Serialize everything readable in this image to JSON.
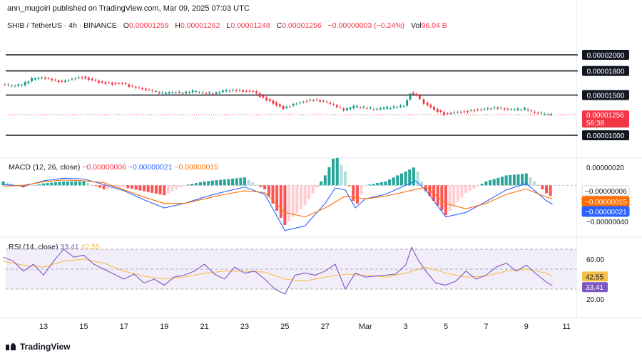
{
  "header": {
    "text": "ann_mugoiri published on TradingView.com, Mar 09, 2025 07:03 UTC"
  },
  "symbol": {
    "name": "SHIB / TetherUS · 4h · BINANCE",
    "o_label": "O",
    "o_value": "0.00001259",
    "h_label": "H",
    "h_value": "0.00001262",
    "l_label": "L",
    "l_value": "0.00001248",
    "c_label": "C",
    "c_value": "0.00001256",
    "change": "−0.00000003 (−0.24%)",
    "vol_label": "Vol",
    "vol_value": "96.04 B"
  },
  "macd_legend": {
    "name": "MACD (12, 26, close)",
    "v1": "−0.00000006",
    "v2": "−0.00000021",
    "v3": "−0.00000015"
  },
  "rsi_legend": {
    "name": "RSI (14, close)",
    "v1": "33.41",
    "v2": "42.55"
  },
  "footer": {
    "brand": "TradingView"
  },
  "colors": {
    "up": "#089981",
    "down": "#f23645",
    "macd_line": "#2962ff",
    "signal_line": "#ff6d00",
    "rsi_line": "#7e57c2",
    "rsi_ma": "#f5c04a",
    "rsi_band": "#ede7f6",
    "hist_up_strong": "#26a69a",
    "hist_up_weak": "#b2dfdb",
    "hist_down_strong": "#ff5252",
    "hist_down_weak": "#ffcdd2"
  },
  "chart_data": {
    "type": "line",
    "x_ticks": [
      "13",
      "15",
      "17",
      "19",
      "21",
      "23",
      "25",
      "27",
      "Mar",
      "3",
      "5",
      "7",
      "9",
      "11"
    ],
    "price_pane": {
      "horizontal_levels": [
        "0.00002000",
        "0.00001800",
        "0.00001500",
        "0.00001000"
      ],
      "level_values": [
        2e-05,
        1.8e-05,
        1.5e-05,
        1e-05
      ],
      "current_price": "0.00001256",
      "countdown": "56:38",
      "close_series": [
        [
          11.0,
          1.64e-05
        ],
        [
          11.5,
          1.62e-05
        ],
        [
          12.0,
          1.63e-05
        ],
        [
          12.5,
          1.7e-05
        ],
        [
          13.0,
          1.72e-05
        ],
        [
          13.5,
          1.69e-05
        ],
        [
          14.0,
          1.66e-05
        ],
        [
          14.5,
          1.7e-05
        ],
        [
          15.0,
          1.72e-05
        ],
        [
          15.5,
          1.68e-05
        ],
        [
          16.0,
          1.65e-05
        ],
        [
          16.5,
          1.64e-05
        ],
        [
          17.0,
          1.64e-05
        ],
        [
          17.5,
          1.6e-05
        ],
        [
          18.0,
          1.58e-05
        ],
        [
          18.5,
          1.55e-05
        ],
        [
          19.0,
          1.52e-05
        ],
        [
          19.5,
          1.54e-05
        ],
        [
          20.0,
          1.53e-05
        ],
        [
          20.5,
          1.55e-05
        ],
        [
          21.0,
          1.53e-05
        ],
        [
          21.5,
          1.52e-05
        ],
        [
          22.0,
          1.55e-05
        ],
        [
          22.5,
          1.56e-05
        ],
        [
          23.0,
          1.55e-05
        ],
        [
          23.5,
          1.54e-05
        ],
        [
          24.0,
          1.46e-05
        ],
        [
          24.5,
          1.4e-05
        ],
        [
          25.0,
          1.33e-05
        ],
        [
          25.5,
          1.38e-05
        ],
        [
          26.0,
          1.42e-05
        ],
        [
          26.5,
          1.44e-05
        ],
        [
          27.0,
          1.42e-05
        ],
        [
          27.5,
          1.38e-05
        ],
        [
          28.0,
          1.32e-05
        ],
        [
          28.5,
          1.36e-05
        ],
        [
          29.0,
          1.35e-05
        ],
        [
          29.5,
          1.33e-05
        ],
        [
          30.0,
          1.34e-05
        ],
        [
          30.5,
          1.35e-05
        ],
        [
          31.0,
          1.37e-05
        ],
        [
          31.3,
          1.52e-05
        ],
        [
          31.6,
          1.49e-05
        ],
        [
          32.0,
          1.4e-05
        ],
        [
          32.5,
          1.32e-05
        ],
        [
          33.0,
          1.26e-05
        ],
        [
          33.5,
          1.28e-05
        ],
        [
          34.0,
          1.29e-05
        ],
        [
          34.5,
          1.31e-05
        ],
        [
          35.0,
          1.32e-05
        ],
        [
          35.5,
          1.34e-05
        ],
        [
          36.0,
          1.33e-05
        ],
        [
          36.5,
          1.32e-05
        ],
        [
          37.0,
          1.33e-05
        ],
        [
          37.5,
          1.29e-05
        ],
        [
          38.0,
          1.27e-05
        ],
        [
          38.3,
          1.256e-05
        ]
      ]
    },
    "macd_pane": {
      "axis_labels": [
        "0.00000020",
        "−0.00000040"
      ],
      "axis_values": [
        2e-07,
        -4e-07
      ],
      "macd_value": "−0.00000006",
      "signal_value": "−0.00000015",
      "macd_line_value": "−0.00000021",
      "macd_series": [
        [
          11,
          1e-08
        ],
        [
          12,
          -1e-08
        ],
        [
          13,
          5e-08
        ],
        [
          14,
          8e-08
        ],
        [
          15,
          7e-08
        ],
        [
          16,
          1e-08
        ],
        [
          17,
          -6e-08
        ],
        [
          18,
          -1.6e-07
        ],
        [
          19,
          -2.5e-07
        ],
        [
          20,
          -2e-07
        ],
        [
          21,
          -1.3e-07
        ],
        [
          22,
          -7e-08
        ],
        [
          23,
          -2e-08
        ],
        [
          24,
          -1e-07
        ],
        [
          25,
          -5e-07
        ],
        [
          26,
          -4.5e-07
        ],
        [
          27,
          -2e-07
        ],
        [
          27.5,
          -3e-08
        ],
        [
          28,
          -5e-08
        ],
        [
          28.5,
          -2.5e-07
        ],
        [
          29,
          -1.5e-07
        ],
        [
          30,
          -1e-07
        ],
        [
          31,
          0.0
        ],
        [
          31.5,
          5e-08
        ],
        [
          32,
          -5e-08
        ],
        [
          33,
          -3.5e-07
        ],
        [
          34,
          -3e-07
        ],
        [
          35,
          -1.8e-07
        ],
        [
          36,
          -5e-08
        ],
        [
          37,
          2e-08
        ],
        [
          38,
          -1.7e-07
        ],
        [
          38.3,
          -2.1e-07
        ]
      ],
      "signal_series": [
        [
          11,
          -1e-08
        ],
        [
          12,
          0.0
        ],
        [
          13,
          4e-08
        ],
        [
          14,
          6e-08
        ],
        [
          15,
          5e-08
        ],
        [
          16,
          3e-08
        ],
        [
          17,
          -5e-08
        ],
        [
          18,
          -1.3e-07
        ],
        [
          19,
          -2e-07
        ],
        [
          20,
          -2e-07
        ],
        [
          21,
          -1.5e-07
        ],
        [
          22,
          -1e-07
        ],
        [
          23,
          -6e-08
        ],
        [
          24,
          -8e-08
        ],
        [
          25,
          -3e-07
        ],
        [
          26,
          -3.5e-07
        ],
        [
          27,
          -2.5e-07
        ],
        [
          28,
          -1.2e-07
        ],
        [
          29,
          -1.5e-07
        ],
        [
          30,
          -1.2e-07
        ],
        [
          31,
          -7e-08
        ],
        [
          32,
          -2e-08
        ],
        [
          33,
          -2e-07
        ],
        [
          34,
          -2.6e-07
        ],
        [
          35,
          -2e-07
        ],
        [
          36,
          -1e-07
        ],
        [
          37,
          -4e-08
        ],
        [
          38,
          -1.3e-07
        ],
        [
          38.3,
          -1.5e-07
        ]
      ]
    },
    "rsi_pane": {
      "axis_labels": [
        "60.00",
        "20.00"
      ],
      "axis_values": [
        60,
        20
      ],
      "rsi_value": "33.41",
      "rsi_ma_value": "42.55",
      "band_upper": 70,
      "band_lower": 30,
      "band_mid": 50,
      "rsi_series": [
        [
          11,
          62
        ],
        [
          11.5,
          58
        ],
        [
          12,
          48
        ],
        [
          12.5,
          55
        ],
        [
          13,
          44
        ],
        [
          13.5,
          58
        ],
        [
          14,
          70
        ],
        [
          14.5,
          62
        ],
        [
          15,
          64
        ],
        [
          15.5,
          55
        ],
        [
          16,
          50
        ],
        [
          16.5,
          45
        ],
        [
          17,
          40
        ],
        [
          17.5,
          45
        ],
        [
          18,
          36
        ],
        [
          18.5,
          40
        ],
        [
          19,
          34
        ],
        [
          19.5,
          42
        ],
        [
          20,
          44
        ],
        [
          20.5,
          48
        ],
        [
          21,
          55
        ],
        [
          21.5,
          45
        ],
        [
          22,
          40
        ],
        [
          22.5,
          52
        ],
        [
          23,
          46
        ],
        [
          23.5,
          48
        ],
        [
          24,
          40
        ],
        [
          24.5,
          30
        ],
        [
          25,
          25
        ],
        [
          25.5,
          44
        ],
        [
          26,
          46
        ],
        [
          26.5,
          44
        ],
        [
          27,
          48
        ],
        [
          27.5,
          55
        ],
        [
          28,
          30
        ],
        [
          28.5,
          46
        ],
        [
          29,
          42
        ],
        [
          29.5,
          43
        ],
        [
          30,
          44
        ],
        [
          30.5,
          45
        ],
        [
          31,
          54
        ],
        [
          31.3,
          72
        ],
        [
          31.6,
          60
        ],
        [
          32,
          48
        ],
        [
          32.5,
          36
        ],
        [
          33,
          34
        ],
        [
          33.5,
          38
        ],
        [
          34,
          48
        ],
        [
          34.5,
          40
        ],
        [
          35,
          44
        ],
        [
          35.5,
          52
        ],
        [
          36,
          56
        ],
        [
          36.5,
          48
        ],
        [
          37,
          54
        ],
        [
          37.5,
          45
        ],
        [
          38,
          37
        ],
        [
          38.3,
          33.41
        ]
      ],
      "rsi_ma_series": [
        [
          11,
          58
        ],
        [
          12,
          54
        ],
        [
          13,
          52
        ],
        [
          14,
          58
        ],
        [
          15,
          60
        ],
        [
          16,
          56
        ],
        [
          17,
          48
        ],
        [
          18,
          43
        ],
        [
          19,
          40
        ],
        [
          20,
          42
        ],
        [
          21,
          46
        ],
        [
          22,
          48
        ],
        [
          23,
          48
        ],
        [
          24,
          47
        ],
        [
          25,
          40
        ],
        [
          26,
          38
        ],
        [
          27,
          42
        ],
        [
          28,
          45
        ],
        [
          29,
          44
        ],
        [
          30,
          42
        ],
        [
          31,
          46
        ],
        [
          32,
          52
        ],
        [
          33,
          46
        ],
        [
          34,
          42
        ],
        [
          35,
          43
        ],
        [
          36,
          48
        ],
        [
          37,
          50
        ],
        [
          38,
          46
        ],
        [
          38.3,
          42.55
        ]
      ]
    }
  }
}
